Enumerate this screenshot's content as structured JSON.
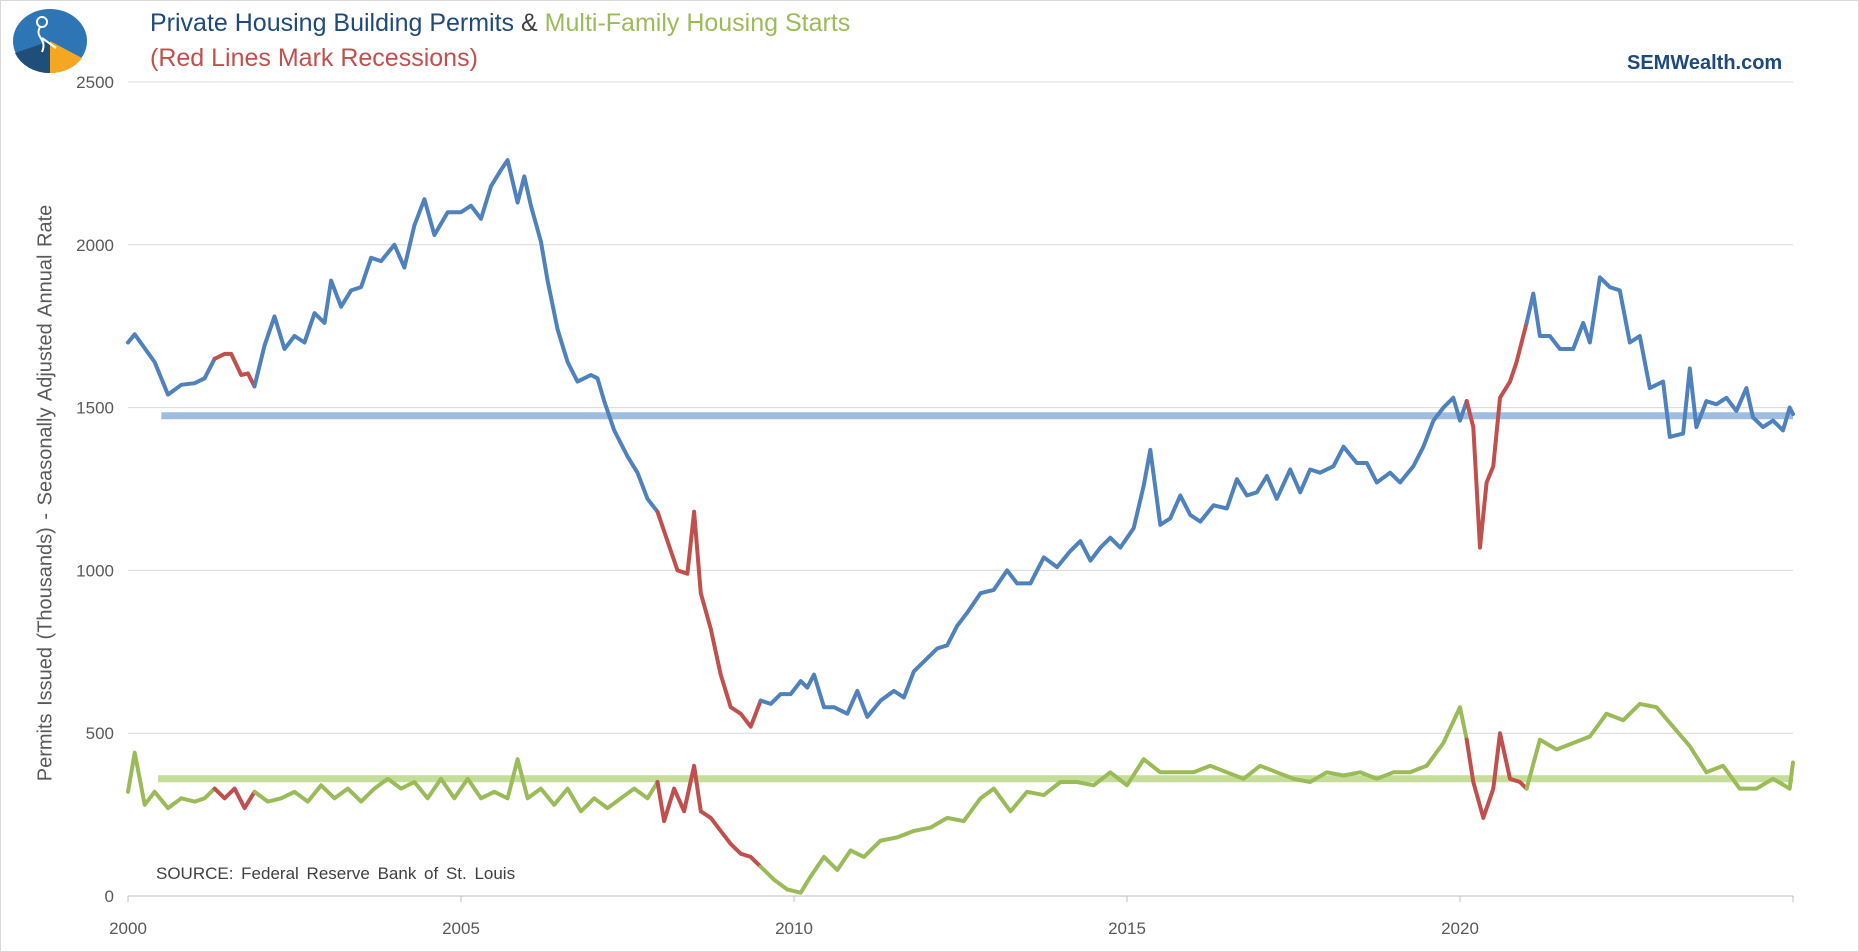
{
  "header": {
    "title_part1": "Private Housing Building Permits",
    "title_amp": "&",
    "title_part2": "Multi-Family Housing Starts",
    "subtitle": "(Red Lines Mark Recessions)",
    "brand": "SEMWealth.com"
  },
  "footer": {
    "source": "SOURCE:  Federal Reserve Bank of St. Louis"
  },
  "colors": {
    "permits": "#4f81bd",
    "multifamily": "#9bbb59",
    "recession": "#c0504d",
    "permits_avg": "#9fbde0",
    "multifamily_avg": "#c4de9a",
    "title_blue": "#1f497d",
    "title_green": "#9bbb59",
    "title_red": "#c0504d",
    "grid": "#d9d9d9"
  },
  "chart_data": {
    "type": "line",
    "title": "Private Housing Building Permits & Multi-Family Housing Starts",
    "subtitle": "(Red Lines Mark Recessions)",
    "xlabel": "",
    "ylabel": "Permits Issued (Thousands) - Seasonally Adjusted Annual Rate",
    "xlim": [
      2000,
      2025
    ],
    "ylim": [
      0,
      2500
    ],
    "x_ticks": [
      2000,
      2005,
      2010,
      2015,
      2020
    ],
    "y_ticks": [
      0,
      500,
      1000,
      1500,
      2000,
      2500
    ],
    "grid": true,
    "recessions": [
      [
        2001.2,
        2001.9
      ],
      [
        2007.95,
        2009.5
      ],
      [
        2020.1,
        2021.0
      ]
    ],
    "series": [
      {
        "name": "Private Housing Building Permits",
        "points": [
          [
            2000.0,
            1700
          ],
          [
            2000.1,
            1725
          ],
          [
            2000.4,
            1640
          ],
          [
            2000.6,
            1540
          ],
          [
            2000.8,
            1570
          ],
          [
            2001.0,
            1575
          ],
          [
            2001.15,
            1590
          ],
          [
            2001.3,
            1650
          ],
          [
            2001.45,
            1665
          ],
          [
            2001.55,
            1665
          ],
          [
            2001.7,
            1600
          ],
          [
            2001.8,
            1605
          ],
          [
            2001.9,
            1565
          ],
          [
            2002.05,
            1690
          ],
          [
            2002.2,
            1780
          ],
          [
            2002.35,
            1680
          ],
          [
            2002.5,
            1720
          ],
          [
            2002.65,
            1700
          ],
          [
            2002.8,
            1790
          ],
          [
            2002.95,
            1760
          ],
          [
            2003.05,
            1890
          ],
          [
            2003.2,
            1810
          ],
          [
            2003.35,
            1860
          ],
          [
            2003.5,
            1870
          ],
          [
            2003.65,
            1960
          ],
          [
            2003.8,
            1950
          ],
          [
            2004.0,
            2000
          ],
          [
            2004.15,
            1930
          ],
          [
            2004.3,
            2060
          ],
          [
            2004.45,
            2140
          ],
          [
            2004.6,
            2030
          ],
          [
            2004.8,
            2100
          ],
          [
            2005.0,
            2100
          ],
          [
            2005.15,
            2120
          ],
          [
            2005.3,
            2080
          ],
          [
            2005.45,
            2180
          ],
          [
            2005.6,
            2230
          ],
          [
            2005.7,
            2260
          ],
          [
            2005.85,
            2130
          ],
          [
            2005.95,
            2210
          ],
          [
            2006.05,
            2120
          ],
          [
            2006.2,
            2010
          ],
          [
            2006.3,
            1890
          ],
          [
            2006.45,
            1740
          ],
          [
            2006.6,
            1640
          ],
          [
            2006.75,
            1580
          ],
          [
            2006.95,
            1600
          ],
          [
            2007.05,
            1590
          ],
          [
            2007.15,
            1520
          ],
          [
            2007.3,
            1430
          ],
          [
            2007.5,
            1350
          ],
          [
            2007.65,
            1300
          ],
          [
            2007.8,
            1220
          ],
          [
            2007.95,
            1180
          ],
          [
            2008.1,
            1090
          ],
          [
            2008.25,
            1000
          ],
          [
            2008.4,
            990
          ],
          [
            2008.5,
            1180
          ],
          [
            2008.6,
            930
          ],
          [
            2008.75,
            820
          ],
          [
            2008.9,
            680
          ],
          [
            2009.05,
            580
          ],
          [
            2009.2,
            560
          ],
          [
            2009.35,
            520
          ],
          [
            2009.5,
            600
          ],
          [
            2009.65,
            590
          ],
          [
            2009.8,
            620
          ],
          [
            2009.95,
            620
          ],
          [
            2010.1,
            660
          ],
          [
            2010.2,
            640
          ],
          [
            2010.3,
            680
          ],
          [
            2010.45,
            580
          ],
          [
            2010.6,
            580
          ],
          [
            2010.8,
            560
          ],
          [
            2010.95,
            630
          ],
          [
            2011.1,
            550
          ],
          [
            2011.3,
            600
          ],
          [
            2011.5,
            630
          ],
          [
            2011.65,
            610
          ],
          [
            2011.8,
            690
          ],
          [
            2011.95,
            720
          ],
          [
            2012.15,
            760
          ],
          [
            2012.3,
            770
          ],
          [
            2012.45,
            830
          ],
          [
            2012.6,
            870
          ],
          [
            2012.8,
            930
          ],
          [
            2013.0,
            940
          ],
          [
            2013.2,
            1000
          ],
          [
            2013.35,
            960
          ],
          [
            2013.55,
            960
          ],
          [
            2013.75,
            1040
          ],
          [
            2013.95,
            1010
          ],
          [
            2014.15,
            1060
          ],
          [
            2014.3,
            1090
          ],
          [
            2014.45,
            1030
          ],
          [
            2014.6,
            1070
          ],
          [
            2014.75,
            1100
          ],
          [
            2014.9,
            1070
          ],
          [
            2015.1,
            1130
          ],
          [
            2015.25,
            1260
          ],
          [
            2015.35,
            1370
          ],
          [
            2015.5,
            1140
          ],
          [
            2015.65,
            1160
          ],
          [
            2015.8,
            1230
          ],
          [
            2015.95,
            1170
          ],
          [
            2016.1,
            1150
          ],
          [
            2016.3,
            1200
          ],
          [
            2016.5,
            1190
          ],
          [
            2016.65,
            1280
          ],
          [
            2016.8,
            1230
          ],
          [
            2016.95,
            1240
          ],
          [
            2017.1,
            1290
          ],
          [
            2017.25,
            1220
          ],
          [
            2017.45,
            1310
          ],
          [
            2017.6,
            1240
          ],
          [
            2017.75,
            1310
          ],
          [
            2017.9,
            1300
          ],
          [
            2018.1,
            1320
          ],
          [
            2018.25,
            1380
          ],
          [
            2018.45,
            1330
          ],
          [
            2018.6,
            1330
          ],
          [
            2018.75,
            1270
          ],
          [
            2018.95,
            1300
          ],
          [
            2019.1,
            1270
          ],
          [
            2019.3,
            1320
          ],
          [
            2019.45,
            1380
          ],
          [
            2019.6,
            1460
          ],
          [
            2019.75,
            1500
          ],
          [
            2019.9,
            1530
          ],
          [
            2020.0,
            1460
          ],
          [
            2020.1,
            1520
          ],
          [
            2020.2,
            1440
          ],
          [
            2020.3,
            1070
          ],
          [
            2020.4,
            1270
          ],
          [
            2020.5,
            1320
          ],
          [
            2020.6,
            1530
          ],
          [
            2020.75,
            1580
          ],
          [
            2020.85,
            1640
          ],
          [
            2021.0,
            1760
          ],
          [
            2021.1,
            1850
          ],
          [
            2021.2,
            1720
          ],
          [
            2021.35,
            1720
          ],
          [
            2021.5,
            1680
          ],
          [
            2021.7,
            1680
          ],
          [
            2021.85,
            1760
          ],
          [
            2021.95,
            1700
          ],
          [
            2022.1,
            1900
          ],
          [
            2022.25,
            1870
          ],
          [
            2022.4,
            1860
          ],
          [
            2022.55,
            1700
          ],
          [
            2022.7,
            1720
          ],
          [
            2022.85,
            1560
          ],
          [
            2023.05,
            1580
          ],
          [
            2023.15,
            1410
          ],
          [
            2023.35,
            1420
          ],
          [
            2023.45,
            1620
          ],
          [
            2023.55,
            1440
          ],
          [
            2023.7,
            1520
          ],
          [
            2023.85,
            1510
          ],
          [
            2024.0,
            1530
          ],
          [
            2024.15,
            1490
          ],
          [
            2024.3,
            1560
          ],
          [
            2024.4,
            1470
          ],
          [
            2024.55,
            1440
          ],
          [
            2024.7,
            1460
          ],
          [
            2024.85,
            1430
          ],
          [
            2024.95,
            1500
          ],
          [
            2025.0,
            1480
          ]
        ]
      },
      {
        "name": "Multi-Family Housing Starts",
        "points": [
          [
            2000.0,
            320
          ],
          [
            2000.1,
            440
          ],
          [
            2000.25,
            280
          ],
          [
            2000.4,
            320
          ],
          [
            2000.6,
            270
          ],
          [
            2000.8,
            300
          ],
          [
            2001.0,
            290
          ],
          [
            2001.15,
            300
          ],
          [
            2001.3,
            330
          ],
          [
            2001.45,
            300
          ],
          [
            2001.6,
            330
          ],
          [
            2001.75,
            270
          ],
          [
            2001.9,
            320
          ],
          [
            2002.1,
            290
          ],
          [
            2002.3,
            300
          ],
          [
            2002.5,
            320
          ],
          [
            2002.7,
            290
          ],
          [
            2002.9,
            340
          ],
          [
            2003.1,
            300
          ],
          [
            2003.3,
            330
          ],
          [
            2003.5,
            290
          ],
          [
            2003.7,
            330
          ],
          [
            2003.9,
            360
          ],
          [
            2004.1,
            330
          ],
          [
            2004.3,
            350
          ],
          [
            2004.5,
            300
          ],
          [
            2004.7,
            360
          ],
          [
            2004.9,
            300
          ],
          [
            2005.1,
            360
          ],
          [
            2005.3,
            300
          ],
          [
            2005.5,
            320
          ],
          [
            2005.7,
            300
          ],
          [
            2005.85,
            420
          ],
          [
            2006.0,
            300
          ],
          [
            2006.2,
            330
          ],
          [
            2006.4,
            280
          ],
          [
            2006.6,
            330
          ],
          [
            2006.8,
            260
          ],
          [
            2007.0,
            300
          ],
          [
            2007.2,
            270
          ],
          [
            2007.4,
            300
          ],
          [
            2007.6,
            330
          ],
          [
            2007.8,
            300
          ],
          [
            2007.95,
            350
          ],
          [
            2008.05,
            230
          ],
          [
            2008.2,
            330
          ],
          [
            2008.35,
            260
          ],
          [
            2008.5,
            400
          ],
          [
            2008.6,
            260
          ],
          [
            2008.75,
            240
          ],
          [
            2008.9,
            200
          ],
          [
            2009.05,
            160
          ],
          [
            2009.2,
            130
          ],
          [
            2009.35,
            120
          ],
          [
            2009.5,
            90
          ],
          [
            2009.7,
            50
          ],
          [
            2009.9,
            20
          ],
          [
            2010.1,
            10
          ],
          [
            2010.25,
            60
          ],
          [
            2010.45,
            120
          ],
          [
            2010.65,
            80
          ],
          [
            2010.85,
            140
          ],
          [
            2011.05,
            120
          ],
          [
            2011.3,
            170
          ],
          [
            2011.55,
            180
          ],
          [
            2011.8,
            200
          ],
          [
            2012.05,
            210
          ],
          [
            2012.3,
            240
          ],
          [
            2012.55,
            230
          ],
          [
            2012.8,
            300
          ],
          [
            2013.0,
            330
          ],
          [
            2013.25,
            260
          ],
          [
            2013.5,
            320
          ],
          [
            2013.75,
            310
          ],
          [
            2014.0,
            350
          ],
          [
            2014.25,
            350
          ],
          [
            2014.5,
            340
          ],
          [
            2014.75,
            380
          ],
          [
            2015.0,
            340
          ],
          [
            2015.25,
            420
          ],
          [
            2015.5,
            380
          ],
          [
            2015.75,
            380
          ],
          [
            2016.0,
            380
          ],
          [
            2016.25,
            400
          ],
          [
            2016.5,
            380
          ],
          [
            2016.75,
            360
          ],
          [
            2017.0,
            400
          ],
          [
            2017.25,
            380
          ],
          [
            2017.5,
            360
          ],
          [
            2017.75,
            350
          ],
          [
            2018.0,
            380
          ],
          [
            2018.25,
            370
          ],
          [
            2018.5,
            380
          ],
          [
            2018.75,
            360
          ],
          [
            2019.0,
            380
          ],
          [
            2019.25,
            380
          ],
          [
            2019.5,
            400
          ],
          [
            2019.75,
            470
          ],
          [
            2020.0,
            580
          ],
          [
            2020.1,
            480
          ],
          [
            2020.2,
            350
          ],
          [
            2020.35,
            240
          ],
          [
            2020.5,
            330
          ],
          [
            2020.6,
            500
          ],
          [
            2020.75,
            360
          ],
          [
            2020.9,
            350
          ],
          [
            2021.0,
            330
          ],
          [
            2021.2,
            480
          ],
          [
            2021.45,
            450
          ],
          [
            2021.7,
            470
          ],
          [
            2021.95,
            490
          ],
          [
            2022.2,
            560
          ],
          [
            2022.45,
            540
          ],
          [
            2022.7,
            590
          ],
          [
            2022.95,
            580
          ],
          [
            2023.2,
            520
          ],
          [
            2023.45,
            460
          ],
          [
            2023.7,
            380
          ],
          [
            2023.95,
            400
          ],
          [
            2024.2,
            330
          ],
          [
            2024.45,
            330
          ],
          [
            2024.7,
            360
          ],
          [
            2024.95,
            330
          ],
          [
            2025.0,
            410
          ]
        ]
      }
    ],
    "average_lines": [
      {
        "series": "Private Housing Building Permits",
        "value": 1475,
        "from": 2000.5,
        "to": 2025.0
      },
      {
        "series": "Multi-Family Housing Starts",
        "value": 360,
        "from": 2000.45,
        "to": 2025.0
      }
    ]
  }
}
